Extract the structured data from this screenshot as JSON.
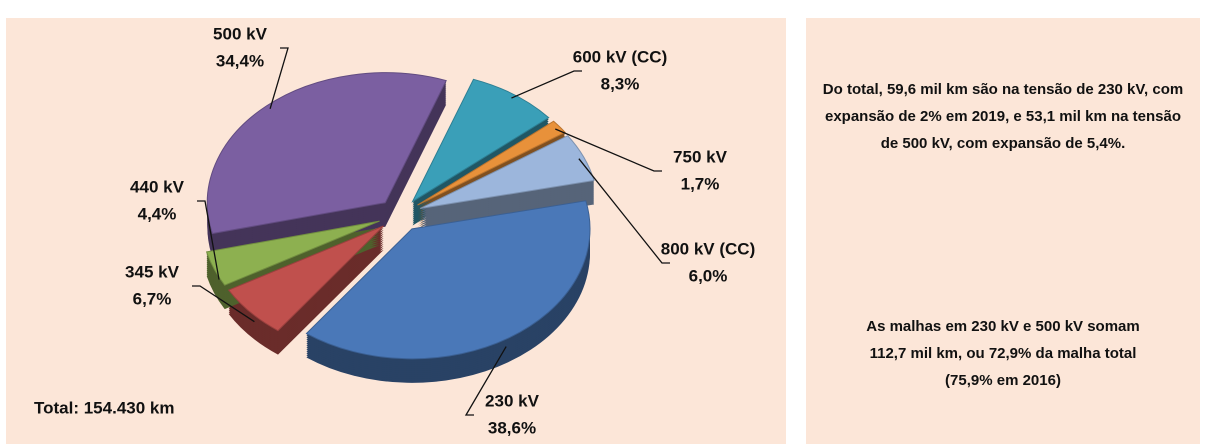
{
  "chart_data": {
    "type": "pie",
    "categories": [
      "600 kV (CC)",
      "750 kV",
      "800 kV (CC)",
      "230 kV",
      "345 kV",
      "440 kV",
      "500 kV"
    ],
    "values": [
      8.3,
      1.7,
      6.0,
      38.6,
      6.7,
      4.4,
      34.4
    ],
    "value_labels": [
      "8,3%",
      "1,7%",
      "6,0%",
      "38,6%",
      "6,7%",
      "4,4%",
      "34,4%"
    ],
    "colors": [
      "#3a9fb8",
      "#e8913a",
      "#9cb6dc",
      "#4a78b8",
      "#c0504d",
      "#8db050",
      "#7b5fa1"
    ],
    "total": "Total: 154.430  km"
  },
  "notes": [
    "Do total, 59,6 mil km são na tensão de 230 kV, com expansão de 2% em 2019, e 53,1 mil km na tensão de 500 kV, com expansão de 5,4%.",
    "As malhas em 230 kV e 500 kV somam 112,7 mil km, ou 72,9% da malha total (75,9% em 2016)"
  ]
}
